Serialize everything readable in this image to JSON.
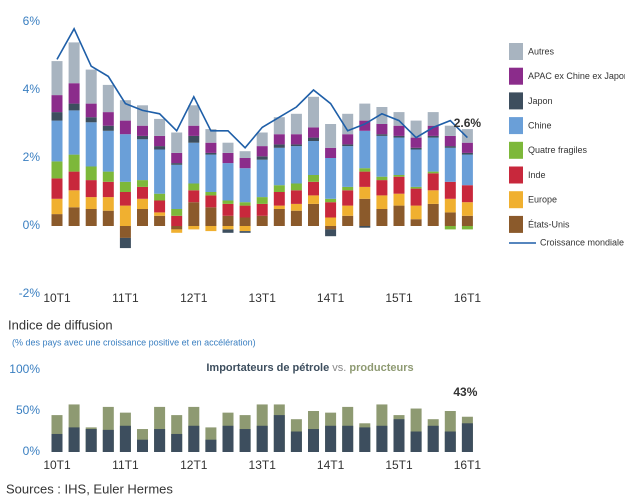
{
  "chart_data": [
    {
      "type": "bar",
      "mode": "stacked",
      "categories": [
        "10T1",
        null,
        null,
        null,
        "11T1",
        null,
        null,
        null,
        "12T1",
        null,
        null,
        null,
        "13T1",
        null,
        null,
        null,
        "14T1",
        null,
        null,
        null,
        "15T1",
        null,
        null,
        null,
        "16T1"
      ],
      "ylim": [
        -2,
        6
      ],
      "yticks": [
        {
          "value": -2,
          "label": "-2%"
        },
        {
          "value": 0,
          "label": "0%"
        },
        {
          "value": 2,
          "label": "2%"
        },
        {
          "value": 4,
          "label": "4%"
        },
        {
          "value": 6,
          "label": "6%"
        }
      ],
      "legend": "right",
      "series": [
        {
          "name": "États-Unis",
          "color": "#8b5a2b",
          "values": [
            0.35,
            0.55,
            0.5,
            0.45,
            -0.35,
            0.5,
            0.3,
            -0.1,
            0.7,
            0.55,
            0.3,
            0.25,
            0.3,
            0.5,
            0.45,
            0.65,
            -0.1,
            0.3,
            0.8,
            0.5,
            0.6,
            0.2,
            0.65,
            0.4,
            0.3
          ]
        },
        {
          "name": "Europe",
          "color": "#f0b030",
          "values": [
            0.45,
            0.5,
            0.35,
            0.4,
            0.6,
            0.3,
            0.1,
            -0.1,
            -0.1,
            -0.15,
            -0.1,
            -0.15,
            0.0,
            0.1,
            0.2,
            0.25,
            0.25,
            0.3,
            0.35,
            0.4,
            0.35,
            0.4,
            0.4,
            0.4,
            0.4
          ]
        },
        {
          "name": "Inde",
          "color": "#c8283c",
          "values": [
            0.6,
            0.55,
            0.5,
            0.45,
            0.4,
            0.35,
            0.35,
            0.3,
            0.35,
            0.35,
            0.35,
            0.35,
            0.35,
            0.4,
            0.4,
            0.4,
            0.45,
            0.45,
            0.45,
            0.45,
            0.5,
            0.5,
            0.5,
            0.5,
            0.5
          ]
        },
        {
          "name": "Quatre fragiles",
          "color": "#7db83a",
          "values": [
            0.5,
            0.5,
            0.4,
            0.3,
            0.3,
            0.2,
            0.2,
            0.2,
            0.2,
            0.1,
            0.1,
            0.1,
            0.2,
            0.2,
            0.2,
            0.2,
            0.1,
            0.1,
            0.1,
            0.1,
            0.05,
            0.05,
            0.05,
            -0.1,
            -0.1
          ]
        },
        {
          "name": "Chine",
          "color": "#6a9fd8",
          "values": [
            1.2,
            1.3,
            1.3,
            1.2,
            1.4,
            1.2,
            1.3,
            1.3,
            1.2,
            1.1,
            1.1,
            1.0,
            1.1,
            1.1,
            1.1,
            1.0,
            1.2,
            1.2,
            1.1,
            1.2,
            1.1,
            1.1,
            1.0,
            1.0,
            0.9
          ]
        },
        {
          "name": "Japon",
          "color": "#3d4e5e",
          "values": [
            0.25,
            0.2,
            0.15,
            0.15,
            -0.3,
            0.1,
            0.1,
            0.05,
            0.2,
            0.05,
            -0.1,
            -0.05,
            0.1,
            0.1,
            0.05,
            0.1,
            -0.2,
            0.05,
            -0.05,
            0.05,
            0.05,
            0.05,
            0.05,
            0.05,
            0.05
          ]
        },
        {
          "name": "APAC ex Chine ex Japon",
          "color": "#8b2c8b",
          "values": [
            0.5,
            0.6,
            0.4,
            0.4,
            0.4,
            0.3,
            0.3,
            0.3,
            0.3,
            0.3,
            0.3,
            0.3,
            0.3,
            0.3,
            0.3,
            0.3,
            0.3,
            0.3,
            0.3,
            0.3,
            0.3,
            0.3,
            0.3,
            0.3,
            0.3
          ]
        },
        {
          "name": "Autres",
          "color": "#a8b4c0",
          "values": [
            1.0,
            1.2,
            1.0,
            0.8,
            0.6,
            0.6,
            0.5,
            0.6,
            0.6,
            0.4,
            0.3,
            0.2,
            0.4,
            0.5,
            0.6,
            0.9,
            0.7,
            0.6,
            0.5,
            0.5,
            0.4,
            0.5,
            0.4,
            0.3,
            0.4
          ]
        },
        {
          "name": "Croissance mondiale",
          "type": "line",
          "color": "#1f5fa8",
          "end_label": "2.6%",
          "values": [
            4.9,
            5.8,
            4.7,
            4.4,
            3.6,
            3.4,
            3.3,
            2.8,
            3.8,
            2.8,
            2.8,
            2.3,
            2.9,
            3.2,
            3.5,
            4.0,
            3.6,
            2.8,
            3.0,
            3.3,
            3.1,
            2.6,
            2.9,
            3.1,
            2.6
          ]
        }
      ]
    },
    {
      "type": "bar",
      "mode": "overlaid",
      "title": "Indice de diffusion",
      "subtitle": "(% des pays avec une croissance positive et en accélération)",
      "inner_title_parts": [
        "Importateurs de pétrole",
        "vs.",
        "producteurs"
      ],
      "categories": [
        "10T1",
        null,
        null,
        null,
        "11T1",
        null,
        null,
        null,
        "12T1",
        null,
        null,
        null,
        "13T1",
        null,
        null,
        null,
        "14T1",
        null,
        null,
        null,
        "15T1",
        null,
        null,
        null,
        "16T1"
      ],
      "ylim": [
        0,
        100
      ],
      "yticks": [
        {
          "value": 0,
          "label": "0%"
        },
        {
          "value": 50,
          "label": "50%"
        },
        {
          "value": 100,
          "label": "100%"
        }
      ],
      "series": [
        {
          "name": "producteurs",
          "color": "#8e9a72",
          "end_label": "43%",
          "values": [
            45,
            58,
            30,
            55,
            48,
            28,
            55,
            45,
            55,
            30,
            48,
            45,
            58,
            58,
            40,
            50,
            48,
            55,
            35,
            58,
            45,
            53,
            40,
            50,
            43
          ]
        },
        {
          "name": "Importateurs de pétrole",
          "color": "#3d4e5e",
          "values": [
            22,
            30,
            28,
            27,
            32,
            15,
            28,
            22,
            32,
            15,
            32,
            28,
            32,
            45,
            25,
            28,
            32,
            32,
            30,
            32,
            40,
            25,
            32,
            25,
            35
          ]
        }
      ]
    }
  ],
  "source": "Sources : IHS, Euler Hermes"
}
